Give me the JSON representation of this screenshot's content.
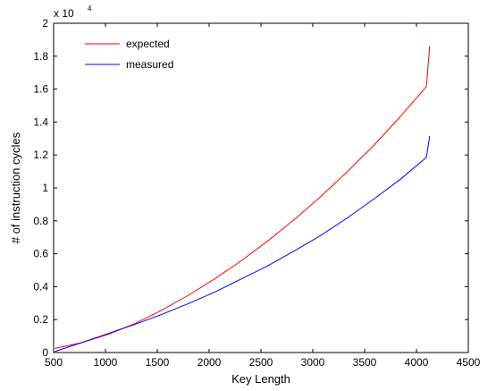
{
  "chart_data": {
    "type": "line",
    "title": "",
    "xlabel": "Key Length",
    "ylabel": "# of instruction cycles",
    "xlim": [
      500,
      4500
    ],
    "ylim": [
      0,
      20000
    ],
    "x_ticks": [
      500,
      1000,
      1500,
      2000,
      2500,
      3000,
      3500,
      4000,
      4500
    ],
    "x_tick_labels": [
      "500",
      "1000",
      "1500",
      "2000",
      "2500",
      "3000",
      "3500",
      "4000",
      "4500"
    ],
    "y_ticks": [
      0,
      2000,
      4000,
      6000,
      8000,
      10000,
      12000,
      14000,
      16000,
      18000,
      20000
    ],
    "y_tick_labels": [
      "0",
      "0.2",
      "0.4",
      "0.6",
      "0.8",
      "1",
      "1.2",
      "1.4",
      "1.6",
      "1.8",
      "2"
    ],
    "y_multiplier": {
      "base": "x 10",
      "exponent": "4"
    },
    "grid": false,
    "legend_position": "top-left",
    "series": [
      {
        "name": "expected",
        "color": "#ff0000",
        "x": [
          512,
          768,
          1024,
          1280,
          1536,
          1792,
          2048,
          2304,
          2560,
          2816,
          3072,
          3328,
          3584,
          3840,
          4096,
          4128
        ],
        "y": [
          250,
          600,
          1100,
          1750,
          2550,
          3450,
          4450,
          5550,
          6750,
          8050,
          9450,
          10950,
          12550,
          14300,
          16150,
          18600
        ]
      },
      {
        "name": "measured",
        "color": "#0000ff",
        "x": [
          512,
          768,
          1024,
          1280,
          1536,
          1792,
          2048,
          2304,
          2560,
          2816,
          3072,
          3328,
          3584,
          3840,
          4096,
          4128
        ],
        "y": [
          60,
          600,
          1150,
          1700,
          2300,
          2950,
          3650,
          4450,
          5250,
          6150,
          7100,
          8150,
          9300,
          10500,
          11850,
          13150
        ]
      }
    ]
  }
}
